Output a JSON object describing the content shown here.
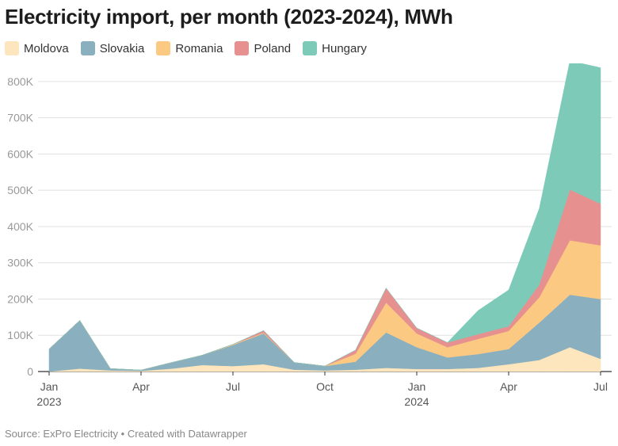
{
  "title": "Electricity import, per month (2023-2024), MWh",
  "footer": {
    "source": "Source: ExPro Electricity",
    "separator": "•",
    "credit": "Created with Datawrapper"
  },
  "chart_data": {
    "type": "area",
    "stacked": true,
    "title": "Electricity import, per month (2023-2024), MWh",
    "xlabel": "",
    "ylabel": "",
    "ylim": [
      0,
      850000
    ],
    "yticks": [
      0,
      100000,
      200000,
      300000,
      400000,
      500000,
      600000,
      700000,
      800000
    ],
    "ytick_labels": [
      "0",
      "100K",
      "200K",
      "300K",
      "400K",
      "500K",
      "600K",
      "700K",
      "800K"
    ],
    "categories": [
      "Jan 2023",
      "Feb 2023",
      "Mar 2023",
      "Apr 2023",
      "May 2023",
      "Jun 2023",
      "Jul 2023",
      "Aug 2023",
      "Sep 2023",
      "Oct 2023",
      "Nov 2023",
      "Dec 2023",
      "Jan 2024",
      "Feb 2024",
      "Mar 2024",
      "Apr 2024",
      "May 2024",
      "Jun 2024",
      "Jul 2024"
    ],
    "x_ticks": [
      {
        "index": 0,
        "label": "Jan",
        "year": "2023"
      },
      {
        "index": 3,
        "label": "Apr",
        "year": ""
      },
      {
        "index": 6,
        "label": "Jul",
        "year": ""
      },
      {
        "index": 9,
        "label": "Oct",
        "year": ""
      },
      {
        "index": 12,
        "label": "Jan",
        "year": "2024"
      },
      {
        "index": 15,
        "label": "Apr",
        "year": ""
      },
      {
        "index": 18,
        "label": "Jul",
        "year": ""
      }
    ],
    "legend_position": "top-left",
    "series": [
      {
        "name": "Moldova",
        "color": "#fde5bd",
        "values": [
          0,
          8000,
          3000,
          2000,
          8000,
          18000,
          15000,
          20000,
          5000,
          3000,
          5000,
          10000,
          7000,
          7000,
          10000,
          20000,
          32000,
          67000,
          35000
        ]
      },
      {
        "name": "Slovakia",
        "color": "#8aafbe",
        "values": [
          62000,
          133000,
          5000,
          2000,
          17000,
          27000,
          58000,
          85000,
          20000,
          12000,
          22000,
          98000,
          60000,
          32000,
          38000,
          42000,
          103000,
          145000,
          165000
        ]
      },
      {
        "name": "Romania",
        "color": "#fcc982",
        "values": [
          0,
          0,
          0,
          0,
          0,
          0,
          2000,
          2000,
          0,
          0,
          22000,
          82000,
          38000,
          28000,
          42000,
          50000,
          70000,
          150000,
          148000
        ]
      },
      {
        "name": "Poland",
        "color": "#e69090",
        "values": [
          0,
          0,
          0,
          0,
          0,
          0,
          0,
          6000,
          0,
          0,
          10000,
          40000,
          15000,
          13000,
          13000,
          13000,
          35000,
          140000,
          115000
        ]
      },
      {
        "name": "Hungary",
        "color": "#7dcab9",
        "values": [
          0,
          0,
          0,
          0,
          0,
          0,
          0,
          0,
          0,
          0,
          0,
          0,
          0,
          0,
          65000,
          100000,
          210000,
          355000,
          375000
        ]
      }
    ]
  }
}
